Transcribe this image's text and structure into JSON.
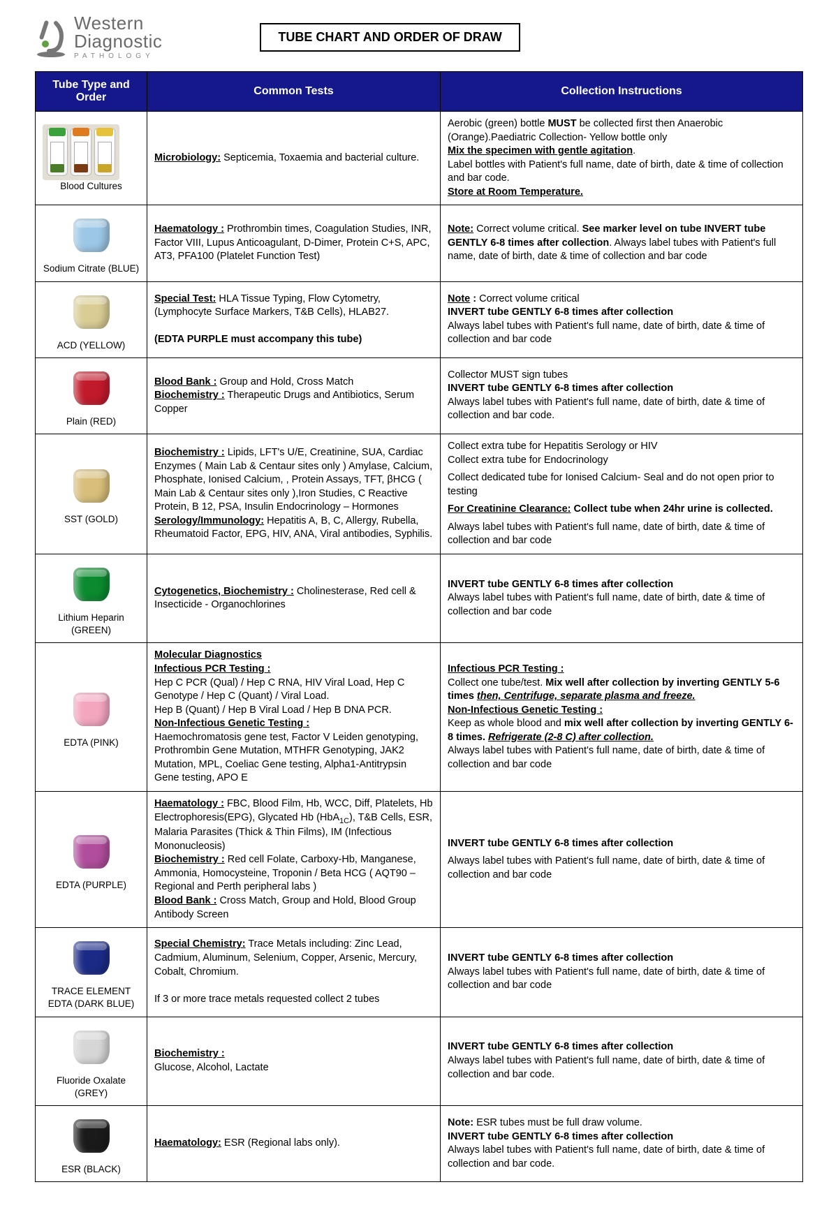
{
  "logo": {
    "l1": "Western",
    "l2": "Diagnostic",
    "l3": "PATHOLOGY"
  },
  "title": "TUBE CHART AND ORDER OF DRAW",
  "columns": [
    "Tube Type and Order",
    "Common Tests",
    "Collection Instructions"
  ],
  "headerBg": "#15188a",
  "rows": [
    {
      "label": "Blood Cultures",
      "kind": "bottles",
      "tests": "<span class='b u'>Microbiology:</span> Septicemia, Toxaemia and bacterial culture.",
      "instr": "Aerobic (green) bottle <span class='b'>MUST</span> be collected first then Anaerobic (Orange).Paediatric Collection- Yellow bottle only<br><span class='b u'>Mix the specimen with gentle agitation</span>.<br>Label bottles with Patient's full name, date of birth, date &amp; time of collection and bar code.<br><span class='b u'>Store at Room Temperature.</span>"
    },
    {
      "label": "Sodium Citrate (BLUE)",
      "color": "#9cc7e6",
      "tests": "<span class='b u'>Haematology :</span> Prothrombin times, Coagulation Studies, INR, Factor VIII, Lupus Anticoagulant, D-Dimer, Protein C+S, APC, AT3, PFA100 (Platelet Function Test)",
      "instr": "<span class='b u'>Note:</span> Correct volume critical.  <span class='b'>See marker level on tube INVERT tube GENTLY 6-8 times after collection</span>. Always label tubes with Patient's full name, date of birth, date &amp; time of collection and bar code"
    },
    {
      "label": "ACD (YELLOW)",
      "color": "#d9cd94",
      "tests": "<span class='b u'>Special Test:</span> HLA Tissue Typing, Flow Cytometry, (Lymphocyte Surface Markers, T&amp;B Cells), HLAB27.<br><br><span class='b'>(EDTA PURPLE must accompany this tube)</span>",
      "instr": "<span class='b u'>Note</span> <span class='b'>:</span> Correct volume critical<br><span class='b'>INVERT tube GENTLY 6-8  times after collection</span><br>Always label tubes with Patient's full name, date of birth, date &amp; time of collection and bar code"
    },
    {
      "label": "Plain (RED)",
      "color": "#c11a2b",
      "tests": "<span class='b u'>Blood Bank :</span> Group and Hold, Cross Match<br><span class='b u'>Biochemistry :</span> Therapeutic Drugs and Antibiotics, Serum Copper",
      "instr": "Collector MUST sign tubes<br><span class='b'>INVERT tube GENTLY 6-8 times after collection</span><br>Always label tubes with Patient's full name, date of birth, date &amp; time of collection and bar code."
    },
    {
      "label": "SST (GOLD)",
      "color": "#d8be7a",
      "tests": "<span class='b u'>Biochemistry :</span>  Lipids, LFT's U/E, Creatinine, SUA, Cardiac Enzymes ( Main Lab &amp; Centaur sites only ) Amylase, Calcium, Phosphate, Ionised Calcium, , Protein Assays, TFT, βHCG ( Main Lab &amp; Centaur sites only ),Iron Studies, C Reactive Protein, B 12, PSA, Insulin  Endocrinology – Hormones<br><span class='b u'>Serology/Immunology:</span>  Hepatitis A, B, C, Allergy, Rubella, Rheumatoid Factor, EPG, HIV, ANA, Viral antibodies, Syphilis.",
      "instr": "Collect extra tube for Hepatitis Serology or HIV<br>Collect extra tube for Endocrinology<br><div style='height:6px'></div>Collect dedicated tube for Ionised Calcium- Seal and do not open prior to testing<br><div style='height:6px'></div><span class='b u'>For Creatinine Clearance:</span> <span class='b'>Collect tube when 24hr urine is collected.</span><br><div style='height:6px'></div>Always label tubes with Patient's full name, date of birth, date &amp; time of collection and bar code"
    },
    {
      "label": "Lithium Heparin (GREEN)",
      "color": "#0b8a2f",
      "tests": "<span class='b u'>Cytogenetics, Biochemistry :</span>  Cholinesterase, Red cell &amp; Insecticide - Organochlorines",
      "instr": "<span class='b'>INVERT tube GENTLY 6-8 times after collection</span><br>Always label tubes with Patient's full name, date of birth, date &amp; time of collection and bar code"
    },
    {
      "label": "EDTA (PINK)",
      "color": "#f4a6bf",
      "tests": "<span class='b u'>Molecular Diagnostics</span><br><span class='b u'>Infectious PCR Testing :</span><br>Hep C PCR (Qual) / Hep C RNA, HIV Viral Load, Hep C Genotype / Hep C (Quant) / Viral Load.<br>Hep B (Quant) / Hep B Viral Load / Hep B DNA PCR.<br><span class='b u'>Non-Infectious Genetic Testing :</span><br>Haemochromatosis gene test, Factor V Leiden genotyping, Prothrombin Gene Mutation, MTHFR Genotyping, JAK2 Mutation, MPL, Coeliac Gene testing, Alpha1-Antitrypsin Gene testing, APO E",
      "instr": "<span class='b u'>Infectious PCR Testing :</span><br>Collect one tube/test. <span class='b'>Mix well after collection by inverting GENTLY 5-6 times</span> <span class='bi'>then, Centrifuge, separate plasma and freeze.</span><br><span class='b u'>Non-Infectious Genetic Testing :</span><br>Keep as whole blood and <span class='b'>mix well after collection by inverting GENTLY 6-8 times.</span> <span class='bi'>Refrigerate (2-8 C) after collection.</span><br>Always label tubes with Patient's full name, date of birth, date &amp; time of collection and bar code"
    },
    {
      "label": "EDTA (PURPLE)",
      "color": "#b04d9c",
      "tests": "<span class='b u'>Haematology :</span>  FBC, Blood Film, Hb, WCC, Diff, Platelets, Hb Electrophoresis(EPG), Glycated Hb (HbA<sub>1C</sub>), T&amp;B Cells, ESR, Malaria Parasites (Thick &amp; Thin Films), IM (Infectious Mononucleosis)<br><span class='b u'>Biochemistry :</span> Red cell Folate, Carboxy-Hb, Manganese, Ammonia, Homocysteine, Troponin / Beta HCG ( AQT90 – Regional and Perth peripheral labs )<br><span class='b u'>Blood Bank :</span>  Cross Match, Group and Hold, Blood Group Antibody Screen",
      "instr": "<span class='b'>INVERT tube GENTLY 6-8 times after collection</span><br><div style='height:6px'></div>Always label tubes with Patient's full name, date of birth, date &amp; time of collection and bar code"
    },
    {
      "label": "TRACE ELEMENT EDTA (DARK BLUE)",
      "color": "#1b2a86",
      "tests": "<span class='b u'>Special Chemistry:</span> Trace Metals including: Zinc Lead, Cadmium, Aluminum, Selenium, Copper, Arsenic, Mercury, Cobalt, Chromium.<br><br>If 3 or more trace metals requested collect 2 tubes",
      "instr": "<span class='b'>INVERT tube GENTLY 6-8 times after collection</span><br>Always label tubes with Patient's full name, date of birth, date &amp; time of collection and bar code"
    },
    {
      "label": "Fluoride Oxalate (GREY)",
      "color": "#d6d6d6",
      "tests": "<span class='b u'>Biochemistry :</span><br>Glucose, Alcohol, Lactate",
      "instr": "<span class='b'>INVERT tube GENTLY 6-8 times after collection</span><br>Always label tubes with Patient's full name, date of birth, date &amp; time of collection and bar code."
    },
    {
      "label": "ESR (BLACK)",
      "color": "#1a1a1a",
      "tests": "<span class='b u'>Haematology:</span>  ESR (Regional labs only).",
      "instr": "<span class='b'>Note:</span>  ESR tubes must be full draw volume.<br><span class='b'>INVERT tube GENTLY 6-8 times after collection</span><br>Always label tubes with Patient's full name, date of birth, date &amp; time of collection and bar code."
    }
  ]
}
